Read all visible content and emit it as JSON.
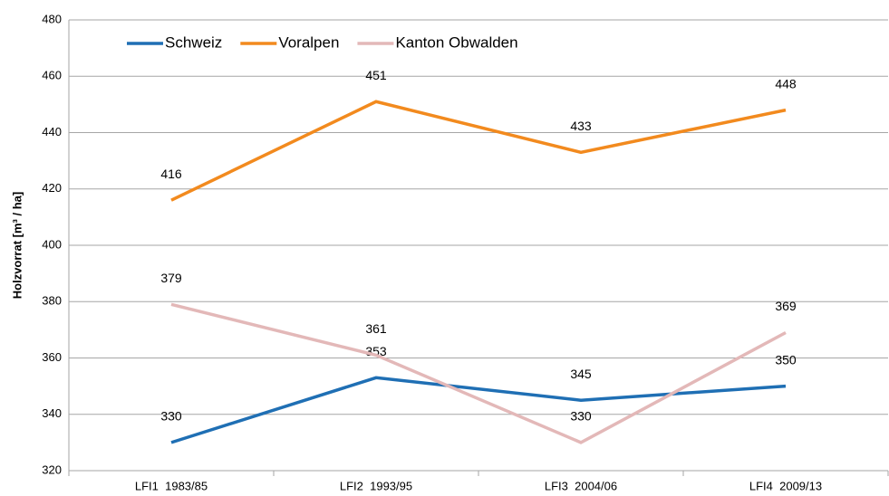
{
  "chart_data": {
    "type": "line",
    "y_label": "Holzvorrat  [m³ / ha]",
    "categories": [
      "LFI1  1983/85",
      "LFI2  1993/95",
      "LFI3  2004/06",
      "LFI4  2009/13"
    ],
    "series": [
      {
        "name": "Schweiz",
        "color": "#1f6fb4",
        "values": [
          330,
          353,
          345,
          350
        ]
      },
      {
        "name": "Voralpen",
        "color": "#f28a1e",
        "values": [
          416,
          451,
          433,
          448
        ]
      },
      {
        "name": "Kanton Obwalden",
        "color": "#e3b8b8",
        "values": [
          379,
          361,
          330,
          369
        ]
      }
    ],
    "ylim": [
      320,
      480
    ],
    "yticks": [
      320,
      340,
      360,
      380,
      400,
      420,
      440,
      460,
      480
    ],
    "grid": true,
    "legend": "top-left"
  }
}
